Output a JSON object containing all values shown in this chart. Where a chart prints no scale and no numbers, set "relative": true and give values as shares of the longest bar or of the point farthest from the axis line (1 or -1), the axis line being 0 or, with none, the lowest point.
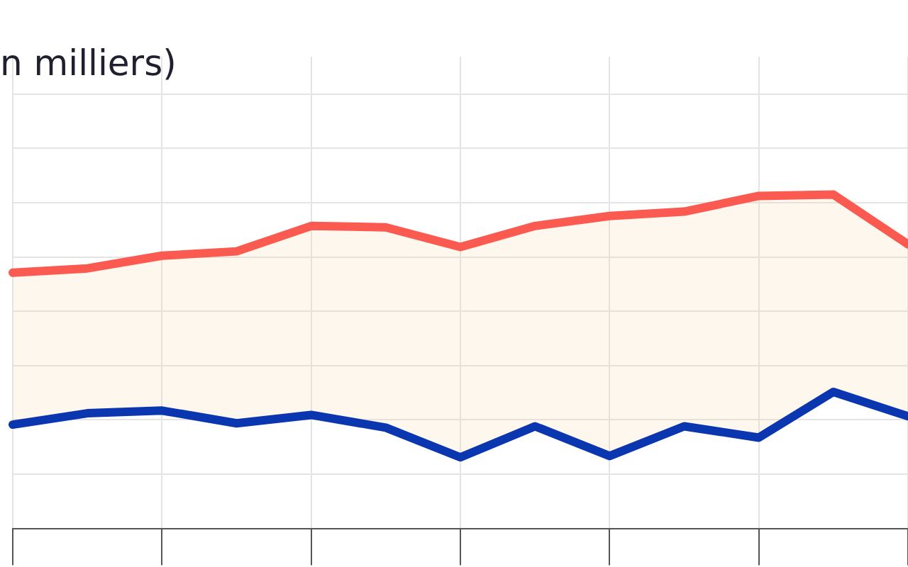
{
  "chart_data": {
    "type": "line",
    "title": "n milliers)",
    "relative": true,
    "grid": true,
    "legend": false,
    "marker": "none",
    "line_style": "solid",
    "categories": [
      null,
      null,
      null,
      null,
      null,
      null,
      null,
      null,
      null,
      null,
      null,
      null,
      null
    ],
    "series": [
      {
        "color": "#0a36b0",
        "values": [
          0.311,
          0.345,
          0.353,
          0.315,
          0.34,
          0.302,
          0.213,
          0.306,
          0.217,
          0.306,
          0.272,
          0.409,
          0.336
        ]
      },
      {
        "color": "#fa5a4f",
        "values": [
          0.766,
          0.779,
          0.817,
          0.83,
          0.906,
          0.902,
          0.843,
          0.906,
          0.936,
          0.949,
          0.996,
          1,
          0.851
        ],
        "lower": [
          0.311,
          0.345,
          0.353,
          0.315,
          0.34,
          0.302,
          0.213,
          0.306,
          0.217,
          0.306,
          0.272,
          0.409,
          0.336
        ],
        "upper": [
          0.766,
          0.779,
          0.817,
          0.83,
          0.906,
          0.902,
          0.843,
          0.906,
          0.936,
          0.949,
          0.996,
          1,
          0.851
        ]
      }
    ]
  }
}
